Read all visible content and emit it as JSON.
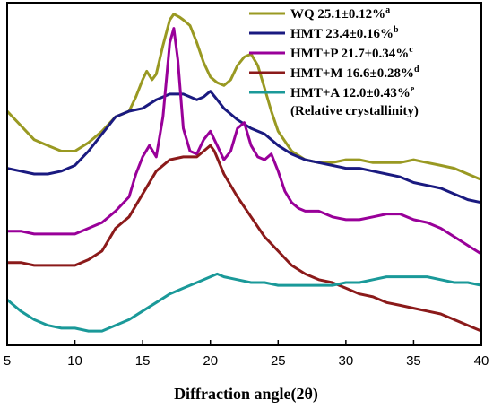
{
  "chart_data": {
    "type": "line",
    "xlabel": "Diffraction angle(2θ)",
    "ylabel": "",
    "xlim": [
      5,
      40
    ],
    "xticks": [
      "5",
      "10",
      "15",
      "20",
      "25",
      "30",
      "35",
      "40"
    ],
    "y_axis_ticks": "none",
    "grid": false,
    "legend_position": "top-right",
    "legend_note": "(Relative crystallinity)",
    "series": [
      {
        "name": "WQ",
        "label_value": "25.1±0.12%",
        "sup": "a",
        "color": "#999922",
        "x": [
          5,
          6,
          7,
          8,
          9,
          10,
          11,
          12,
          13,
          14,
          14.5,
          15,
          15.3,
          15.7,
          16,
          16.5,
          17,
          17.3,
          17.7,
          18,
          18.5,
          19,
          19.5,
          20,
          20.5,
          21,
          21.5,
          22,
          22.5,
          23,
          23.5,
          24,
          24.5,
          25,
          26,
          27,
          28,
          29,
          30,
          31,
          32,
          33,
          34,
          35,
          36,
          37,
          38,
          39,
          40
        ],
        "y": [
          0.62,
          0.57,
          0.52,
          0.5,
          0.48,
          0.48,
          0.51,
          0.55,
          0.6,
          0.62,
          0.67,
          0.73,
          0.76,
          0.73,
          0.75,
          0.85,
          0.94,
          0.96,
          0.95,
          0.94,
          0.92,
          0.86,
          0.79,
          0.74,
          0.72,
          0.71,
          0.73,
          0.78,
          0.81,
          0.82,
          0.78,
          0.7,
          0.62,
          0.55,
          0.48,
          0.45,
          0.44,
          0.44,
          0.45,
          0.45,
          0.44,
          0.44,
          0.44,
          0.45,
          0.44,
          0.43,
          0.42,
          0.4,
          0.38
        ]
      },
      {
        "name": "HMT",
        "label_value": "23.4±0.16%",
        "sup": "b",
        "color": "#1a1a80",
        "x": [
          5,
          6,
          7,
          8,
          9,
          10,
          11,
          12,
          13,
          14,
          15,
          16,
          17,
          18,
          18.5,
          19,
          19.5,
          20,
          20.5,
          21,
          22,
          23,
          24,
          25,
          26,
          27,
          28,
          29,
          30,
          31,
          32,
          33,
          34,
          35,
          36,
          37,
          38,
          39,
          40
        ],
        "y": [
          0.42,
          0.41,
          0.4,
          0.4,
          0.41,
          0.43,
          0.48,
          0.54,
          0.6,
          0.62,
          0.63,
          0.66,
          0.68,
          0.68,
          0.67,
          0.66,
          0.67,
          0.69,
          0.66,
          0.63,
          0.59,
          0.56,
          0.54,
          0.5,
          0.47,
          0.45,
          0.44,
          0.43,
          0.42,
          0.42,
          0.41,
          0.4,
          0.39,
          0.37,
          0.36,
          0.35,
          0.33,
          0.31,
          0.3
        ]
      },
      {
        "name": "HMT+P",
        "label_value": "21.7±0.34%",
        "sup": "c",
        "color": "#990099",
        "x": [
          5,
          6,
          7,
          8,
          9,
          10,
          11,
          12,
          13,
          14,
          14.5,
          15,
          15.5,
          16,
          16.5,
          17,
          17.3,
          17.6,
          18,
          18.5,
          19,
          19.5,
          20,
          20.5,
          21,
          21.5,
          22,
          22.5,
          23,
          23.5,
          24,
          24.5,
          25,
          25.5,
          26,
          26.5,
          27,
          28,
          29,
          30,
          31,
          32,
          33,
          34,
          35,
          36,
          37,
          38,
          39,
          40
        ],
        "y": [
          0.2,
          0.2,
          0.19,
          0.19,
          0.19,
          0.19,
          0.21,
          0.23,
          0.27,
          0.32,
          0.4,
          0.46,
          0.5,
          0.46,
          0.6,
          0.86,
          0.91,
          0.8,
          0.56,
          0.48,
          0.47,
          0.52,
          0.55,
          0.5,
          0.45,
          0.48,
          0.56,
          0.58,
          0.5,
          0.46,
          0.45,
          0.47,
          0.41,
          0.34,
          0.3,
          0.28,
          0.27,
          0.27,
          0.25,
          0.24,
          0.24,
          0.25,
          0.26,
          0.26,
          0.24,
          0.23,
          0.21,
          0.18,
          0.15,
          0.12
        ]
      },
      {
        "name": "HMT+M",
        "label_value": "16.6±0.28%",
        "sup": "d",
        "color": "#8b1a1a",
        "x": [
          5,
          6,
          7,
          8,
          9,
          10,
          11,
          12,
          12.5,
          13,
          13.5,
          14,
          15,
          16,
          17,
          18,
          19,
          19.5,
          20,
          20.3,
          21,
          22,
          23,
          24,
          25,
          26,
          27,
          28,
          29,
          30,
          31,
          32,
          33,
          34,
          35,
          36,
          37,
          38,
          39,
          40
        ],
        "y": [
          0.09,
          0.09,
          0.08,
          0.08,
          0.08,
          0.08,
          0.1,
          0.13,
          0.17,
          0.21,
          0.23,
          0.25,
          0.33,
          0.41,
          0.45,
          0.46,
          0.46,
          0.48,
          0.5,
          0.48,
          0.4,
          0.32,
          0.25,
          0.18,
          0.13,
          0.08,
          0.05,
          0.03,
          0.02,
          0.0,
          -0.02,
          -0.03,
          -0.05,
          -0.06,
          -0.07,
          -0.08,
          -0.09,
          -0.11,
          -0.13,
          -0.15
        ]
      },
      {
        "name": "HMT+A",
        "label_value": "12.0±0.43%",
        "sup": "e",
        "color": "#1a9999",
        "x": [
          5,
          6,
          7,
          8,
          9,
          10,
          11,
          12,
          13,
          14,
          15,
          16,
          17,
          18,
          19,
          20,
          20.5,
          21,
          22,
          23,
          24,
          25,
          26,
          27,
          28,
          29,
          30,
          31,
          32,
          33,
          34,
          35,
          36,
          37,
          38,
          39,
          40
        ],
        "y": [
          -0.04,
          -0.08,
          -0.11,
          -0.13,
          -0.14,
          -0.14,
          -0.15,
          -0.15,
          -0.13,
          -0.11,
          -0.08,
          -0.05,
          -0.02,
          0.0,
          0.02,
          0.04,
          0.05,
          0.04,
          0.03,
          0.02,
          0.02,
          0.01,
          0.01,
          0.01,
          0.01,
          0.01,
          0.02,
          0.02,
          0.03,
          0.04,
          0.04,
          0.04,
          0.04,
          0.03,
          0.02,
          0.02,
          0.01
        ]
      }
    ]
  }
}
